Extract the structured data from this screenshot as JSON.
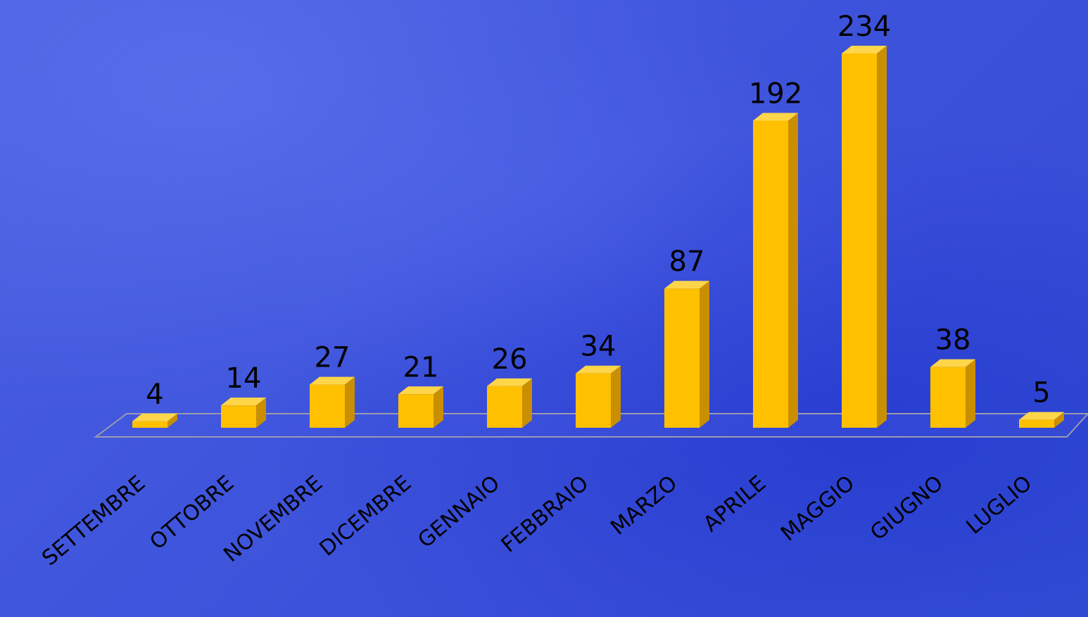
{
  "colors": {
    "background": "#4157dc",
    "bar_front": "#ffc000",
    "bar_side": "#c98f00",
    "bar_top": "#ffd54a",
    "floor_line": "#9a9ab0",
    "text": "#000000"
  },
  "chart_data": {
    "type": "bar",
    "style": "3d-column",
    "categories": [
      "SETTEMBRE",
      "OTTOBRE",
      "NOVEMBRE",
      "DICEMBRE",
      "GENNAIO",
      "FEBBRAIO",
      "MARZO",
      "APRILE",
      "MAGGIO",
      "GIUGNO",
      "LUGLIO"
    ],
    "values": [
      4,
      14,
      27,
      21,
      26,
      34,
      87,
      192,
      234,
      38,
      5
    ],
    "data_labels": [
      "4",
      "14",
      "27",
      "21",
      "26",
      "34",
      "87",
      "192",
      "234",
      "38",
      "5"
    ],
    "title": "",
    "xlabel": "",
    "ylabel": "",
    "ylim": [
      0,
      234
    ],
    "grid": false,
    "legend": "none"
  }
}
